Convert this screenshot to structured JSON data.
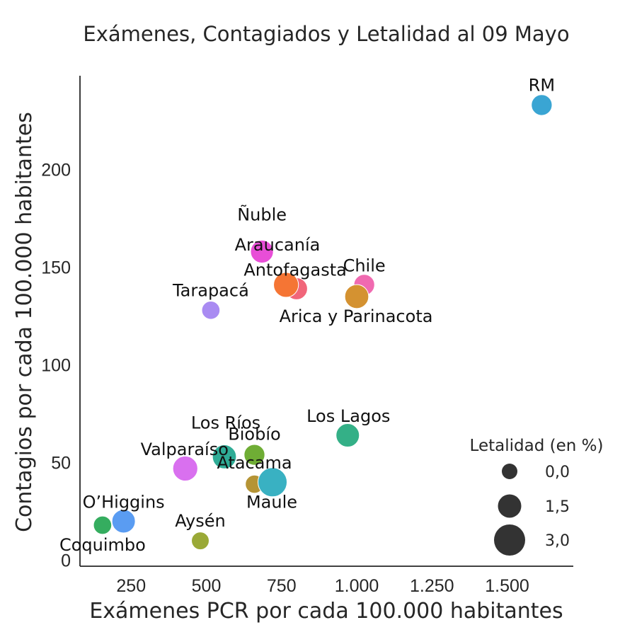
{
  "chart_data": {
    "type": "scatter",
    "title": "Exámenes, Contagiados y Letalidad al 09 Mayo",
    "xlabel": "Exámenes PCR por cada 100.000 habitantes",
    "ylabel": "Contagios por cada 100.000 habitantes",
    "xlim": [
      80,
      1720
    ],
    "ylim": [
      -3,
      248
    ],
    "x_ticks": [
      {
        "value": 250,
        "label": "250"
      },
      {
        "value": 500,
        "label": "500"
      },
      {
        "value": 750,
        "label": "750"
      },
      {
        "value": 1000,
        "label": "1.000"
      },
      {
        "value": 1250,
        "label": "1.250"
      },
      {
        "value": 1500,
        "label": "1.500"
      }
    ],
    "y_ticks": [
      {
        "value": 0,
        "label": "0"
      },
      {
        "value": 50,
        "label": "50"
      },
      {
        "value": 100,
        "label": "100"
      },
      {
        "value": 150,
        "label": "150"
      },
      {
        "value": 200,
        "label": "200"
      }
    ],
    "grid": false,
    "legend": {
      "title": "Letalidad (en %)",
      "placement": "bottom-right",
      "entries": [
        {
          "label": "0,0",
          "letalidad": 0.0
        },
        {
          "label": "1,5",
          "letalidad": 1.5
        },
        {
          "label": "3,0",
          "letalidad": 3.0
        }
      ]
    },
    "size_scale": {
      "min_value": 0,
      "max_value": 3.0
    },
    "points": [
      {
        "name": "RM",
        "x": 1615,
        "y": 233,
        "letalidad": 1.0,
        "color": "#3aa5d3"
      },
      {
        "name": "Ñuble",
        "x": 685,
        "y": 158,
        "letalidad": 1.4,
        "color": "#e84ed7"
      },
      {
        "name": "Araucanía",
        "x": 800,
        "y": 139,
        "letalidad": 1.2,
        "color": "#f1667a"
      },
      {
        "name": "Antofagasta",
        "x": 765,
        "y": 141,
        "letalidad": 1.8,
        "color": "#f57534"
      },
      {
        "name": "Chile",
        "x": 1025,
        "y": 141,
        "letalidad": 1.0,
        "color": "#f06ab0"
      },
      {
        "name": "Arica y Parinacota",
        "x": 1000,
        "y": 135,
        "letalidad": 1.6,
        "color": "#d49231"
      },
      {
        "name": "Tarapacá",
        "x": 515,
        "y": 128,
        "letalidad": 0.5,
        "color": "#a98bf2"
      },
      {
        "name": "Los Lagos",
        "x": 970,
        "y": 64,
        "letalidad": 1.5,
        "color": "#34b087"
      },
      {
        "name": "Los Ríos",
        "x": 560,
        "y": 53,
        "letalidad": 1.6,
        "color": "#2fac96"
      },
      {
        "name": "Biobío",
        "x": 660,
        "y": 54,
        "letalidad": 1.0,
        "color": "#6fad35"
      },
      {
        "name": "Valparaíso",
        "x": 430,
        "y": 47,
        "letalidad": 1.8,
        "color": "#d970ef"
      },
      {
        "name": "Atacama",
        "x": 660,
        "y": 39,
        "letalidad": 0.5,
        "color": "#b59435"
      },
      {
        "name": "Maule",
        "x": 720,
        "y": 40,
        "letalidad": 2.6,
        "color": "#39b1c2"
      },
      {
        "name": "O’Higgins",
        "x": 225,
        "y": 20,
        "letalidad": 1.5,
        "color": "#5a9cf2"
      },
      {
        "name": "Coquimbo",
        "x": 155,
        "y": 18,
        "letalidad": 0.5,
        "color": "#35ad5f"
      },
      {
        "name": "Aysén",
        "x": 480,
        "y": 10,
        "letalidad": 0.4,
        "color": "#9aa937"
      }
    ]
  }
}
